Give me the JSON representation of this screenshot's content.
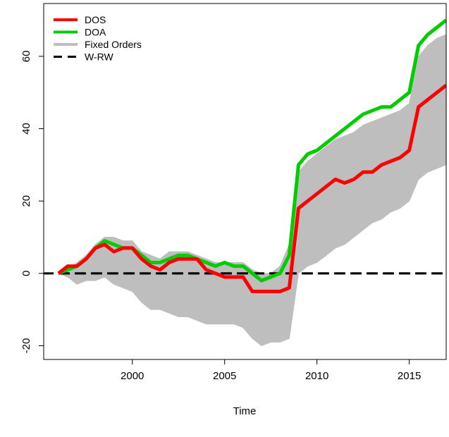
{
  "chart_data": {
    "type": "line",
    "x_label": "Time",
    "x": [
      1996,
      1996.5,
      1997,
      1997.5,
      1998,
      1998.5,
      1999,
      1999.5,
      2000,
      2000.5,
      2001,
      2001.5,
      2002,
      2002.5,
      2003,
      2003.5,
      2004,
      2004.5,
      2005,
      2005.5,
      2006,
      2006.5,
      2007,
      2007.5,
      2008,
      2008.5,
      2009,
      2009.5,
      2010,
      2010.5,
      2011,
      2011.5,
      2012,
      2012.5,
      2013,
      2013.5,
      2014,
      2014.5,
      2015,
      2015.5,
      2016,
      2016.5,
      2017
    ],
    "series": [
      {
        "name": "DOS",
        "color": "#ff0000",
        "values": [
          0,
          2,
          2,
          4,
          7,
          8,
          6,
          7,
          7,
          4,
          2,
          1,
          3,
          4,
          4,
          4,
          1,
          0,
          -1,
          -1,
          -1,
          -5,
          -5,
          -5,
          -5,
          -4,
          18,
          20,
          22,
          24,
          26,
          25,
          26,
          28,
          28,
          30,
          31,
          32,
          34,
          46,
          48,
          50,
          52
        ]
      },
      {
        "name": "DOA",
        "color": "#00cd00",
        "values": [
          0,
          1,
          2,
          4,
          7,
          9,
          8,
          7,
          7,
          5,
          3,
          3,
          4,
          5,
          5,
          4,
          3,
          2,
          3,
          2,
          2,
          0,
          -2,
          -1,
          0,
          5,
          30,
          33,
          34,
          36,
          38,
          40,
          42,
          44,
          45,
          46,
          46,
          48,
          50,
          63,
          66,
          68,
          70
        ]
      },
      {
        "name": "Fixed Orders",
        "color": "#bebebe",
        "high": [
          0,
          1,
          3,
          5,
          8,
          10,
          10,
          9,
          9,
          6,
          5,
          4,
          6,
          6,
          6,
          5,
          4,
          3,
          3,
          3,
          3,
          1,
          0,
          0,
          2,
          8,
          28,
          31,
          33,
          35,
          37,
          38,
          39,
          41,
          42,
          43,
          44,
          45,
          47,
          60,
          63,
          65,
          66
        ],
        "low": [
          0,
          -1,
          -3,
          -2,
          -2,
          -1,
          -3,
          -4,
          -5,
          -8,
          -10,
          -10,
          -11,
          -12,
          -12,
          -13,
          -14,
          -14,
          -14,
          -14,
          -15,
          -18,
          -20,
          -19,
          -19,
          -18,
          0,
          2,
          3,
          5,
          7,
          8,
          10,
          12,
          14,
          15,
          17,
          18,
          20,
          26,
          28,
          29,
          30
        ]
      },
      {
        "name": "W-RW",
        "color": "#000000",
        "dashed": true,
        "values": [
          0,
          0,
          0,
          0,
          0,
          0,
          0,
          0,
          0,
          0,
          0,
          0,
          0,
          0,
          0,
          0,
          0,
          0,
          0,
          0,
          0,
          0,
          0,
          0,
          0,
          0,
          0,
          0,
          0,
          0,
          0,
          0,
          0,
          0,
          0,
          0,
          0,
          0,
          0,
          0,
          0,
          0,
          0
        ]
      }
    ],
    "xlim": [
      1995.2,
      2017.0
    ],
    "xticks": [
      2000,
      2005,
      2010,
      2015
    ],
    "ylim": [
      -23.8,
      74.6
    ],
    "yticks": [
      -20,
      0,
      20,
      40,
      60
    ],
    "legend": "top-left"
  }
}
